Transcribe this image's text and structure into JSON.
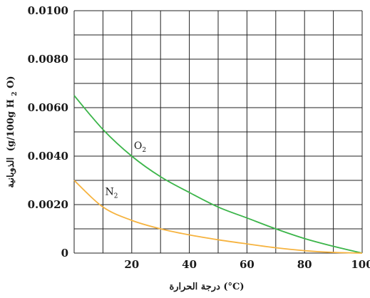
{
  "chart_data": {
    "type": "line",
    "xlabel": "درجة الحرارة (°C)",
    "ylabel": "الذوبانية (g/100g H2O)",
    "ylabel_parts": {
      "arabic": "الذوبانية",
      "open": "(g/100g H",
      "sub": "2",
      "close": "O)"
    },
    "xlim": [
      0,
      100
    ],
    "ylim": [
      0,
      0.01
    ],
    "x_ticks": [
      20,
      40,
      60,
      80,
      100
    ],
    "x_tick_labels": [
      "20",
      "40",
      "60",
      "80",
      "100"
    ],
    "y_ticks": [
      0,
      0.002,
      0.004,
      0.006,
      0.008,
      0.01
    ],
    "y_tick_labels": [
      "0",
      "0.0020",
      "0.0040",
      "0.0060",
      "0.0080",
      "0.0100"
    ],
    "grid": true,
    "series": [
      {
        "name": "O2",
        "label_main": "O",
        "label_sub": "2",
        "color": "#3cb54a",
        "x": [
          0,
          10,
          20,
          30,
          40,
          50,
          60,
          70,
          80,
          90,
          100
        ],
        "y": [
          0.0065,
          0.0051,
          0.004,
          0.00315,
          0.0025,
          0.0019,
          0.00145,
          0.001,
          0.0006,
          0.00028,
          0
        ]
      },
      {
        "name": "N2",
        "label_main": "N",
        "label_sub": "2",
        "color": "#f6b33f",
        "x": [
          0,
          10,
          20,
          30,
          40,
          50,
          60,
          70,
          80,
          90,
          100
        ],
        "y": [
          0.003,
          0.0019,
          0.00135,
          0.001,
          0.00075,
          0.00055,
          0.00038,
          0.00022,
          0.0001,
          3e-05,
          0
        ]
      }
    ]
  }
}
